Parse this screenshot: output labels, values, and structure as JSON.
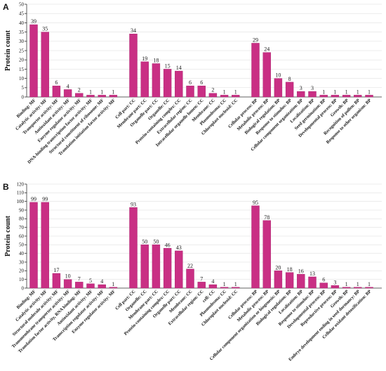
{
  "chart_data": [
    {
      "panel": "A",
      "type": "bar",
      "ylabel": "Protein count",
      "ylim": [
        0,
        50
      ],
      "yticks": [
        0,
        5,
        10,
        15,
        20,
        25,
        30,
        35,
        40,
        45,
        50
      ],
      "grid": true,
      "colors": {
        "MF": "#cc2e86",
        "CC": "#cc2e86",
        "BP": "#cc2e86"
      },
      "groups": [
        {
          "categories": [
            "Binding: MF",
            "Catalytic activity: MF",
            "Transporter activity: MF",
            "Antioxidant activity: MF",
            "Enzyme regulator activity: MF",
            "DNA-binding transcription factor activity: MF",
            "Structural constituent of ribosome: MF",
            "Translation initiation factor activity: MF"
          ],
          "values": [
            39,
            35,
            6,
            4,
            2,
            1,
            1,
            1
          ]
        },
        {
          "categories": [
            "Cell part: CC",
            "Membrane part: CC",
            "Organelle part: CC",
            "Organelle: CC",
            "Protein-containing complex: CC",
            "Extracellular region: CC",
            "Intracellular organelle lumen: CC",
            "Membrane: CC",
            "Plasmodesma: CC",
            "Chloroplast nucleoid: CC"
          ],
          "values": [
            34,
            19,
            18,
            15,
            14,
            6,
            6,
            2,
            1,
            1
          ]
        },
        {
          "categories": [
            "Cellular process: BP",
            "Metabolic process: BP",
            "Biological regulation: BP",
            "Response to stimulus: BP",
            "Cellular component organization: BP",
            "Localization: BP",
            "Seed germination: BP",
            "Developmental process: BP",
            "Growth: BP",
            "Recognition of pollen: BP",
            "Response to other organism: BP"
          ],
          "values": [
            29,
            24,
            10,
            8,
            3,
            3,
            1,
            1,
            1,
            1,
            1
          ]
        }
      ]
    },
    {
      "panel": "B",
      "type": "bar",
      "ylabel": "Protein count",
      "ylim": [
        0,
        120
      ],
      "yticks": [
        0,
        10,
        20,
        30,
        40,
        50,
        60,
        70,
        80,
        90,
        100,
        110,
        120
      ],
      "grid": true,
      "colors": {
        "MF": "#cc2e86",
        "CC": "#cc2e86",
        "BP": "#cc2e86"
      },
      "groups": [
        {
          "categories": [
            "Binding: MF",
            "Catalytic activity: MF",
            "Structural molecule activity: MF",
            "Transmembrane transporter activity: MF",
            "Translation factor activity, RNA binding: MF",
            "Antioxidant activity: MF",
            "Transcription regulator activity: MF",
            "Enzyme regulator activity: MF"
          ],
          "values": [
            99,
            99,
            17,
            10,
            7,
            5,
            4,
            1
          ]
        },
        {
          "categories": [
            "Cell part: CC",
            "Organelle: CC",
            "Membrane part: CC",
            "Protein-containing complex: CC",
            "Organelle part: CC",
            "Membrane: CC",
            "Extracellular region: CC",
            "cell: CC",
            "Plasmodesma: CC",
            "Chloroplast nucleoid: CC"
          ],
          "values": [
            93,
            50,
            50,
            46,
            43,
            22,
            7,
            4,
            1,
            1
          ]
        },
        {
          "categories": [
            "Cellular process: BP",
            "Metabolic process: BP",
            "Cellular component organization or biogenesis: BP",
            "Biological regulation: BP",
            "Localization: BP",
            "Response to stimulus: BP",
            "Developmental process: BP",
            "Reproductive process: BP",
            "Growth: BP",
            "Embryo development ending in seed dormancy: BP",
            "Cellular oxidant detoxification: BP"
          ],
          "values": [
            95,
            78,
            20,
            18,
            16,
            13,
            6,
            3,
            1,
            1,
            1
          ]
        }
      ]
    }
  ]
}
